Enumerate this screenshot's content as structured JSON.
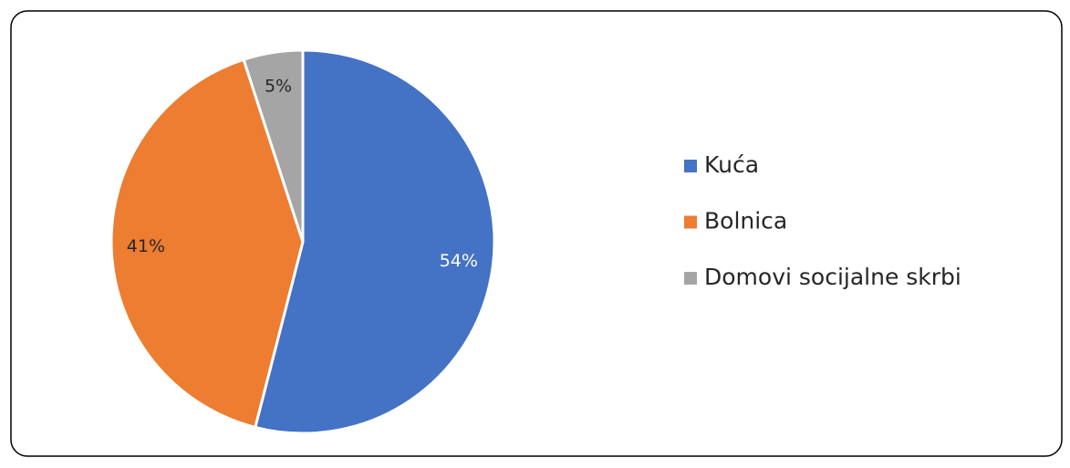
{
  "chart_data": {
    "type": "pie",
    "categories": [
      "Kuća",
      "Bolnica",
      "Domovi socijalne skrbi"
    ],
    "values": [
      54,
      41,
      5
    ],
    "value_labels": [
      "54%",
      "41%",
      "5%"
    ],
    "colors": [
      "#4472c4",
      "#ed7d31",
      "#a5a5a5"
    ],
    "label_colors": [
      "#ffffff",
      "#262626",
      "#262626"
    ],
    "legend": "right"
  }
}
